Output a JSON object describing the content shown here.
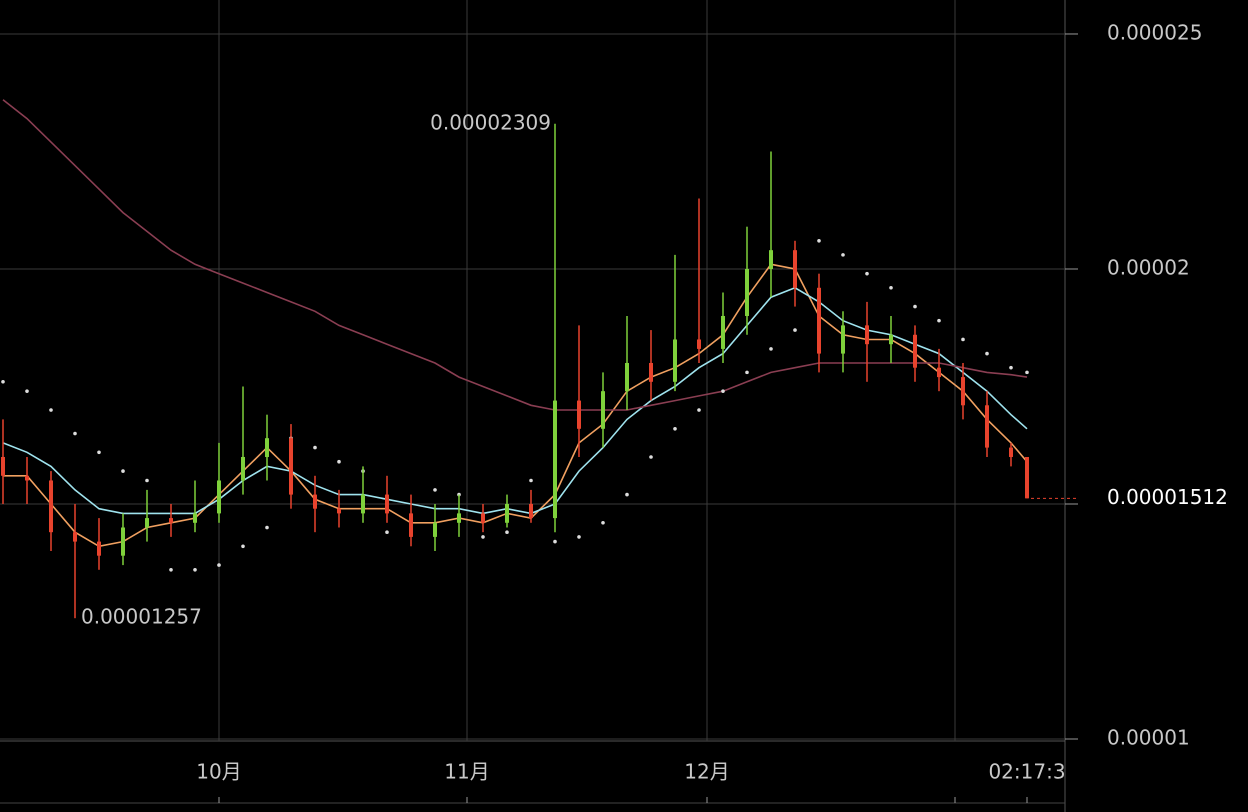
{
  "chart_data": {
    "type": "candlestick",
    "x": [
      0,
      3,
      6,
      9,
      12,
      15,
      18,
      21,
      24,
      27,
      30,
      33,
      36,
      39,
      42,
      45,
      48,
      51,
      54,
      57,
      60,
      63,
      66,
      69,
      72,
      75,
      78,
      81,
      84,
      87,
      90,
      93,
      96,
      99,
      102,
      105,
      108,
      111,
      114,
      117,
      120,
      123,
      126,
      128
    ],
    "open": [
      1.6e-05,
      1.56e-05,
      1.55e-05,
      1.44e-05,
      1.42e-05,
      1.39e-05,
      1.45e-05,
      1.47e-05,
      1.46e-05,
      1.48e-05,
      1.55e-05,
      1.6e-05,
      1.64e-05,
      1.52e-05,
      1.49e-05,
      1.48e-05,
      1.52e-05,
      1.48e-05,
      1.43e-05,
      1.46e-05,
      1.48e-05,
      1.46e-05,
      1.5e-05,
      1.47e-05,
      1.72e-05,
      1.66e-05,
      1.74e-05,
      1.8e-05,
      1.76e-05,
      1.85e-05,
      1.83e-05,
      1.9e-05,
      2e-05,
      2.04e-05,
      1.96e-05,
      1.82e-05,
      1.88e-05,
      1.84e-05,
      1.86e-05,
      1.79e-05,
      1.77e-05,
      1.71e-05,
      1.62e-05,
      1.6e-05
    ],
    "high": [
      1.68e-05,
      1.6e-05,
      1.57e-05,
      1.5e-05,
      1.47e-05,
      1.48e-05,
      1.53e-05,
      1.5e-05,
      1.55e-05,
      1.63e-05,
      1.75e-05,
      1.69e-05,
      1.67e-05,
      1.56e-05,
      1.53e-05,
      1.58e-05,
      1.56e-05,
      1.52e-05,
      1.5e-05,
      1.52e-05,
      1.5e-05,
      1.52e-05,
      1.53e-05,
      2.309e-05,
      1.88e-05,
      1.78e-05,
      1.9e-05,
      1.87e-05,
      2.03e-05,
      2.15e-05,
      1.95e-05,
      2.09e-05,
      2.25e-05,
      2.06e-05,
      1.99e-05,
      1.91e-05,
      1.93e-05,
      1.9e-05,
      1.88e-05,
      1.83e-05,
      1.8e-05,
      1.74e-05,
      1.63e-05,
      1.6e-05
    ],
    "low": [
      1.5e-05,
      1.5e-05,
      1.4e-05,
      1.257e-05,
      1.36e-05,
      1.37e-05,
      1.42e-05,
      1.43e-05,
      1.44e-05,
      1.46e-05,
      1.52e-05,
      1.55e-05,
      1.49e-05,
      1.44e-05,
      1.45e-05,
      1.46e-05,
      1.46e-05,
      1.41e-05,
      1.4e-05,
      1.43e-05,
      1.44e-05,
      1.45e-05,
      1.46e-05,
      1.44e-05,
      1.6e-05,
      1.62e-05,
      1.7e-05,
      1.72e-05,
      1.74e-05,
      1.8e-05,
      1.8e-05,
      1.86e-05,
      1.94e-05,
      1.92e-05,
      1.78e-05,
      1.78e-05,
      1.76e-05,
      1.8e-05,
      1.76e-05,
      1.74e-05,
      1.68e-05,
      1.6e-05,
      1.58e-05,
      1.512e-05
    ],
    "close": [
      1.56e-05,
      1.55e-05,
      1.44e-05,
      1.42e-05,
      1.39e-05,
      1.45e-05,
      1.47e-05,
      1.46e-05,
      1.48e-05,
      1.55e-05,
      1.6e-05,
      1.64e-05,
      1.52e-05,
      1.49e-05,
      1.48e-05,
      1.52e-05,
      1.48e-05,
      1.43e-05,
      1.46e-05,
      1.48e-05,
      1.46e-05,
      1.5e-05,
      1.47e-05,
      1.72e-05,
      1.66e-05,
      1.74e-05,
      1.8e-05,
      1.76e-05,
      1.85e-05,
      1.83e-05,
      1.9e-05,
      2e-05,
      2.04e-05,
      1.96e-05,
      1.82e-05,
      1.88e-05,
      1.84e-05,
      1.86e-05,
      1.79e-05,
      1.77e-05,
      1.71e-05,
      1.62e-05,
      1.6e-05,
      1.512e-05
    ],
    "up_color": "#7fd13b",
    "down_color": "#e8432d",
    "lines": [
      {
        "color": "#f0a060",
        "style": "line",
        "values": [
          1.56e-05,
          1.56e-05,
          1.5e-05,
          1.44e-05,
          1.41e-05,
          1.42e-05,
          1.45e-05,
          1.46e-05,
          1.47e-05,
          1.52e-05,
          1.57e-05,
          1.62e-05,
          1.57e-05,
          1.51e-05,
          1.49e-05,
          1.49e-05,
          1.49e-05,
          1.46e-05,
          1.46e-05,
          1.47e-05,
          1.46e-05,
          1.48e-05,
          1.47e-05,
          1.52e-05,
          1.63e-05,
          1.67e-05,
          1.74e-05,
          1.77e-05,
          1.79e-05,
          1.82e-05,
          1.86e-05,
          1.94e-05,
          2.01e-05,
          2e-05,
          1.9e-05,
          1.86e-05,
          1.85e-05,
          1.85e-05,
          1.82e-05,
          1.78e-05,
          1.74e-05,
          1.68e-05,
          1.63e-05,
          1.59e-05
        ]
      },
      {
        "color": "#9fe3ee",
        "style": "line",
        "values": [
          1.63e-05,
          1.61e-05,
          1.58e-05,
          1.53e-05,
          1.49e-05,
          1.48e-05,
          1.48e-05,
          1.48e-05,
          1.48e-05,
          1.51e-05,
          1.55e-05,
          1.58e-05,
          1.57e-05,
          1.54e-05,
          1.52e-05,
          1.52e-05,
          1.51e-05,
          1.5e-05,
          1.49e-05,
          1.49e-05,
          1.48e-05,
          1.49e-05,
          1.48e-05,
          1.5e-05,
          1.57e-05,
          1.62e-05,
          1.68e-05,
          1.72e-05,
          1.75e-05,
          1.79e-05,
          1.82e-05,
          1.88e-05,
          1.94e-05,
          1.96e-05,
          1.93e-05,
          1.89e-05,
          1.87e-05,
          1.86e-05,
          1.84e-05,
          1.82e-05,
          1.78e-05,
          1.74e-05,
          1.69e-05,
          1.66e-05
        ]
      },
      {
        "color": "#8a3e52",
        "style": "line",
        "values": [
          2.36e-05,
          2.32e-05,
          2.27e-05,
          2.22e-05,
          2.17e-05,
          2.12e-05,
          2.08e-05,
          2.04e-05,
          2.01e-05,
          1.99e-05,
          1.97e-05,
          1.95e-05,
          1.93e-05,
          1.91e-05,
          1.88e-05,
          1.86e-05,
          1.84e-05,
          1.82e-05,
          1.8e-05,
          1.77e-05,
          1.75e-05,
          1.73e-05,
          1.71e-05,
          1.7e-05,
          1.7e-05,
          1.7e-05,
          1.7e-05,
          1.71e-05,
          1.72e-05,
          1.73e-05,
          1.74e-05,
          1.76e-05,
          1.78e-05,
          1.79e-05,
          1.8e-05,
          1.8e-05,
          1.8e-05,
          1.8e-05,
          1.8e-05,
          1.8e-05,
          1.79e-05,
          1.78e-05,
          1.775e-05,
          1.77e-05
        ]
      },
      {
        "color": "#dddddd",
        "style": "dots",
        "values": [
          1.76e-05,
          1.74e-05,
          1.7e-05,
          1.65e-05,
          1.61e-05,
          1.57e-05,
          1.55e-05,
          1.36e-05,
          1.36e-05,
          1.37e-05,
          1.41e-05,
          1.45e-05,
          1.64e-05,
          1.62e-05,
          1.59e-05,
          1.57e-05,
          1.44e-05,
          1.45e-05,
          1.53e-05,
          1.52e-05,
          1.43e-05,
          1.44e-05,
          1.55e-05,
          1.42e-05,
          1.43e-05,
          1.46e-05,
          1.52e-05,
          1.6e-05,
          1.66e-05,
          1.7e-05,
          1.74e-05,
          1.78e-05,
          1.83e-05,
          1.87e-05,
          2.06e-05,
          2.03e-05,
          1.99e-05,
          1.96e-05,
          1.92e-05,
          1.89e-05,
          1.85e-05,
          1.82e-05,
          1.79e-05,
          1.78e-05
        ]
      }
    ],
    "xlim": [
      -0.375,
      132.75
    ],
    "ylim": [
      8.702e-06,
      2.5723e-05
    ],
    "xticks": [
      {
        "value": 27,
        "label": "10月"
      },
      {
        "value": 58,
        "label": "11月"
      },
      {
        "value": 88,
        "label": "12月"
      },
      {
        "value": 119,
        "label": null
      },
      {
        "value": 128,
        "label": "02:17:3"
      }
    ],
    "yticks": [
      {
        "value": 1e-05,
        "label": "0.00001"
      },
      {
        "value": 1.5e-05,
        "label": null
      },
      {
        "value": 2e-05,
        "label": "0.00002"
      },
      {
        "value": 2.5e-05,
        "label": "0.000025"
      }
    ],
    "grid": true
  }
}
